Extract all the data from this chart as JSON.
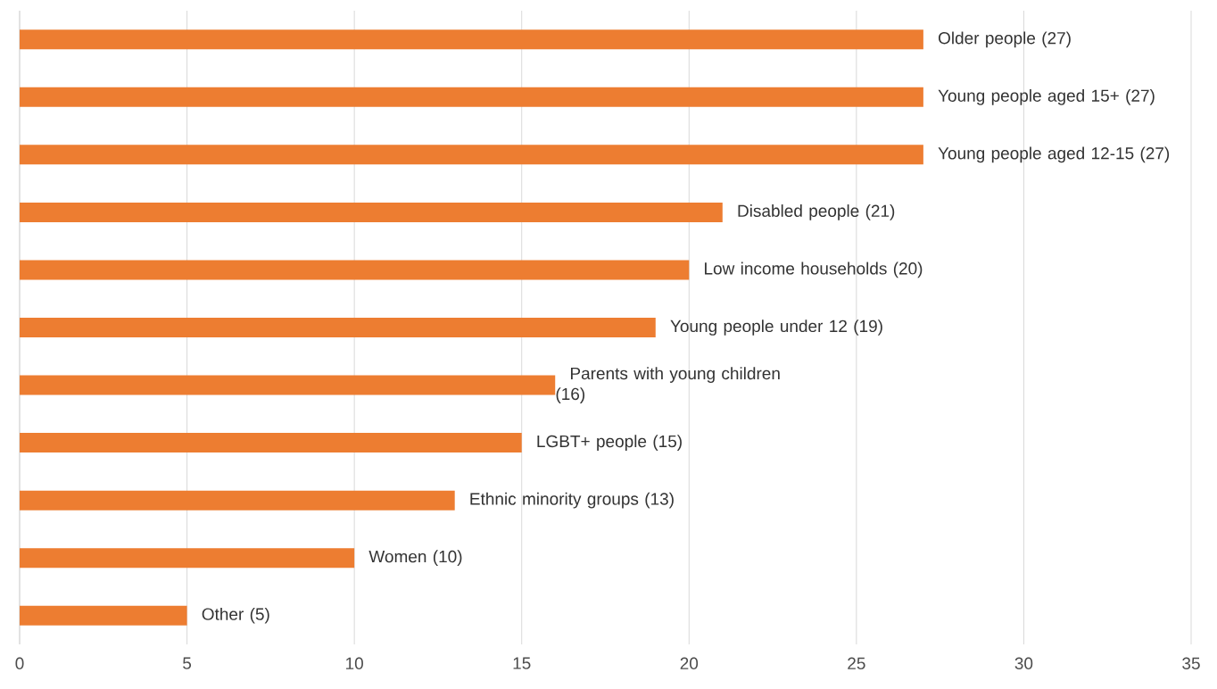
{
  "chart_data": {
    "type": "bar",
    "orientation": "horizontal",
    "categories": [
      "Older people (27)",
      "Young people aged 15+ (27)",
      "Young people aged 12-15 (27)",
      "Disabled people (21)",
      "Low income households (20)",
      "Young people under 12 (19)",
      "Parents with young children (16)",
      "LGBT+ people (15)",
      "Ethnic minority groups (13)",
      "Women (10)",
      "Other (5)"
    ],
    "values": [
      27,
      27,
      27,
      21,
      20,
      19,
      16,
      15,
      13,
      10,
      5
    ],
    "color": "#ed7d31",
    "xlim": [
      0,
      35
    ],
    "xticks": [
      0,
      5,
      10,
      15,
      20,
      25,
      30,
      35
    ],
    "grid": "x"
  }
}
